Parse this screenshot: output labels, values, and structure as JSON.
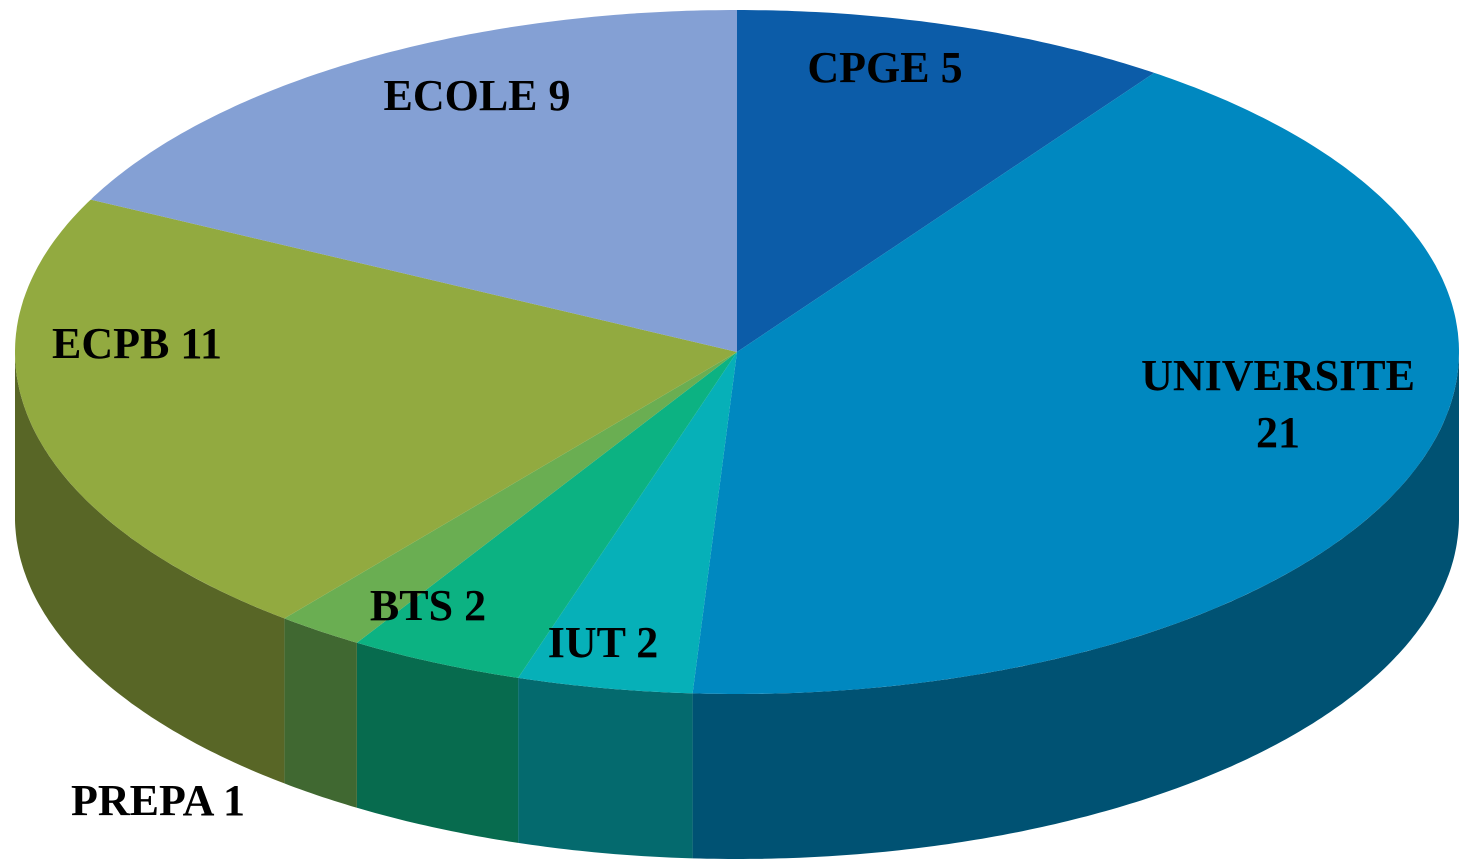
{
  "chart_data": {
    "type": "pie3d",
    "categories": [
      "CPGE",
      "UNIVERSITE",
      "IUT",
      "BTS",
      "PREPA",
      "ECPB",
      "ECOLE"
    ],
    "values": [
      5,
      21,
      2,
      2,
      1,
      11,
      9
    ],
    "colors": [
      "#0c5ca8",
      "#0088c0",
      "#06b0b8",
      "#0cb282",
      "#6aae52",
      "#92aa40",
      "#84a0d4"
    ]
  }
}
